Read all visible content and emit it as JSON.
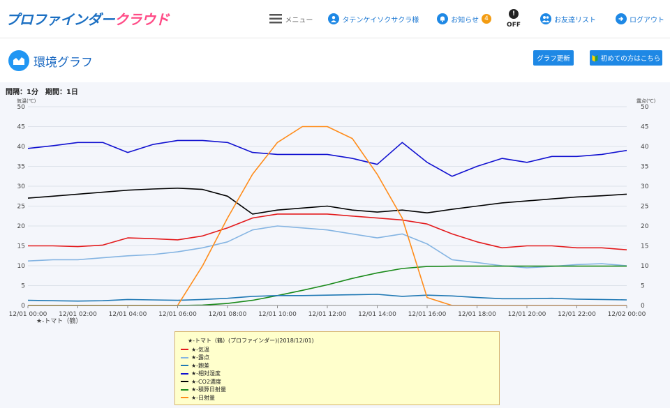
{
  "header": {
    "logo_main": "プロファインダー",
    "logo_cloud": "クラウド",
    "menu_label": "メニュー",
    "user_label": "タテンケイソクサクラ様",
    "notice_label": "お知らせ",
    "notice_count": "4",
    "off_label": "OFF",
    "friends_label": "お友達リスト",
    "logout_label": "ログアウト"
  },
  "page": {
    "title": "環境グラフ",
    "update_button": "グラフ更新",
    "help_button": "初めての方はこちら"
  },
  "graph": {
    "interval_text": "間隔：1分　期間：1日",
    "y_left_label": "気温(℃)",
    "y_right_label": "露点(℃)",
    "y_ticks": [
      "0",
      "5",
      "10",
      "15",
      "20",
      "25",
      "30",
      "35",
      "40",
      "45",
      "50"
    ],
    "x_ticks": [
      "12/01 00:00",
      "12/01 02:00",
      "12/01 04:00",
      "12/01 06:00",
      "12/01 08:00",
      "12/01 10:00",
      "12/01 12:00",
      "12/01 14:00",
      "12/01 16:00",
      "12/01 18:00",
      "12/01 20:00",
      "12/01 22:00",
      "12/02 00:00"
    ],
    "x_sublabel": "★-トマト（鶴）"
  },
  "legend": {
    "title": "★-トマト（鶴）(プロファインダー)(2018/12/01)",
    "items": [
      {
        "label": "★-気温",
        "color": "#e31a1c"
      },
      {
        "label": "★-露点",
        "color": "#84b4e2"
      },
      {
        "label": "★-飽差",
        "color": "#1f78b4"
      },
      {
        "label": "★-相対湿度",
        "color": "#1010d0"
      },
      {
        "label": "★-CO2濃度",
        "color": "#000000"
      },
      {
        "label": "★-積算日射量",
        "color": "#1a8a1a"
      },
      {
        "label": "★-日射量",
        "color": "#ff8c1a"
      }
    ]
  },
  "chart_data": {
    "type": "line",
    "x": [
      "00:00",
      "01:00",
      "02:00",
      "03:00",
      "04:00",
      "05:00",
      "06:00",
      "07:00",
      "08:00",
      "09:00",
      "10:00",
      "11:00",
      "12:00",
      "13:00",
      "14:00",
      "15:00",
      "16:00",
      "17:00",
      "18:00",
      "19:00",
      "20:00",
      "21:00",
      "22:00",
      "23:00",
      "24:00"
    ],
    "ylim": [
      0,
      50
    ],
    "grid": true,
    "legend_position": "bottom-center",
    "series": [
      {
        "name": "★-相対湿度",
        "color": "#1010d0",
        "values": [
          39.5,
          40.2,
          41,
          41,
          38.5,
          40.5,
          41.5,
          41.5,
          41,
          38.5,
          38,
          38,
          38,
          37,
          35.5,
          41,
          36,
          32.5,
          35,
          37,
          36,
          37.5,
          37.5,
          38,
          39
        ]
      },
      {
        "name": "★-CO2濃度",
        "color": "#000000",
        "values": [
          27,
          27.5,
          28,
          28.5,
          29,
          29.3,
          29.5,
          29.2,
          27.5,
          23,
          24,
          24.5,
          25,
          24,
          23.5,
          24,
          23.3,
          24.2,
          25,
          25.8,
          26.3,
          26.8,
          27.3,
          27.6,
          28
        ]
      },
      {
        "name": "★-気温",
        "color": "#e31a1c",
        "values": [
          15,
          15,
          14.8,
          15.2,
          17,
          16.8,
          16.5,
          17.5,
          19.5,
          22,
          23,
          23,
          23,
          22.5,
          22,
          21.5,
          20.5,
          18,
          16,
          14.5,
          15,
          15,
          14.5,
          14.5,
          14
        ]
      },
      {
        "name": "★-露点",
        "color": "#84b4e2",
        "values": [
          11.2,
          11.5,
          11.5,
          12,
          12.5,
          12.8,
          13.5,
          14.5,
          16,
          19,
          20,
          19.5,
          19,
          18,
          17,
          18,
          15.5,
          11.5,
          10.8,
          10,
          9.5,
          9.8,
          10.3,
          10.5,
          10
        ]
      },
      {
        "name": "★-積算日射量",
        "color": "#1a8a1a",
        "values": [
          0,
          0,
          0,
          0,
          0,
          0,
          0,
          0.1,
          0.5,
          1.3,
          2.5,
          3.8,
          5.2,
          6.8,
          8.2,
          9.3,
          9.8,
          9.9,
          9.9,
          9.9,
          9.9,
          9.9,
          9.9,
          9.9,
          9.9
        ]
      },
      {
        "name": "★-飽差",
        "color": "#1f78b4",
        "values": [
          1.3,
          1.2,
          1.1,
          1.2,
          1.5,
          1.4,
          1.3,
          1.5,
          1.8,
          2.3,
          2.5,
          2.5,
          2.6,
          2.7,
          2.8,
          2.3,
          2.6,
          2.4,
          2,
          1.7,
          1.7,
          1.8,
          1.6,
          1.5,
          1.4
        ]
      },
      {
        "name": "★-日射量",
        "color": "#ff8c1a",
        "values": [
          0,
          0,
          0,
          0,
          0,
          0,
          0,
          10,
          22,
          33,
          41,
          45,
          45,
          42,
          33,
          22,
          2,
          0,
          0,
          0,
          0,
          0,
          0,
          0,
          0
        ]
      }
    ]
  }
}
